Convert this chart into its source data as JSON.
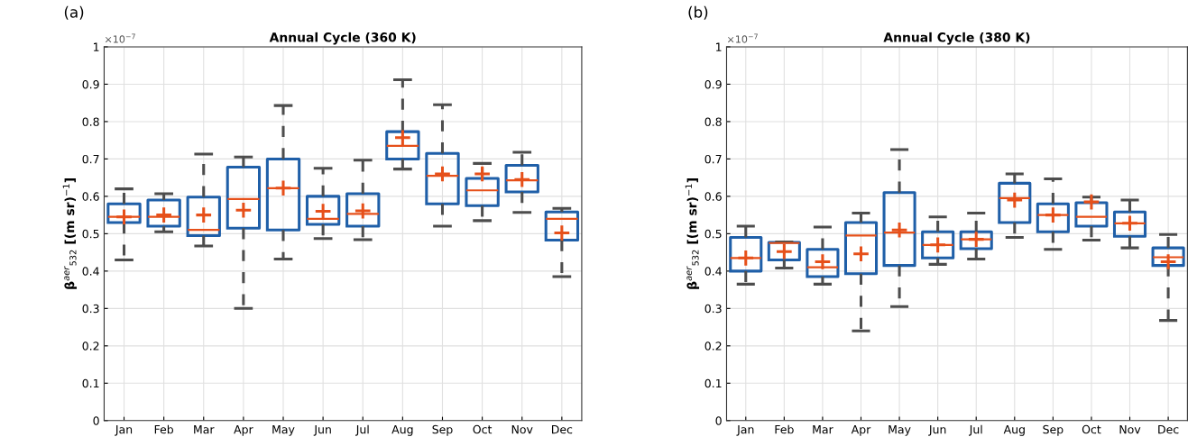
{
  "chart_data": [
    {
      "type": "box",
      "title": "Annual Cycle (360 K)",
      "ylabel": "β$^{aer}$$_{532}$ [(m sr)$^{−1}$]",
      "annotations": [
        "(a)",
        "×10$^{−7}$"
      ],
      "categories": [
        "Jan",
        "Feb",
        "Mar",
        "Apr",
        "May",
        "Jun",
        "Jul",
        "Aug",
        "Sep",
        "Oct",
        "Nov",
        "Dec"
      ],
      "ylim": [
        0,
        1
      ],
      "yticks": [
        0,
        0.1,
        0.2,
        0.3,
        0.4,
        0.5,
        0.6,
        0.7,
        0.8,
        0.9,
        1
      ],
      "grid": true,
      "marker": "cross",
      "line_style": "dashed",
      "series": [
        {
          "color": "#1f5fa8",
          "boxes": [
            {
              "low": 0.43,
              "q1": 0.53,
              "median": 0.545,
              "q3": 0.58,
              "high": 0.62,
              "mean": 0.545
            },
            {
              "low": 0.505,
              "q1": 0.52,
              "median": 0.545,
              "q3": 0.59,
              "high": 0.607,
              "mean": 0.55
            },
            {
              "low": 0.467,
              "q1": 0.495,
              "median": 0.51,
              "q3": 0.598,
              "high": 0.713,
              "mean": 0.55
            },
            {
              "low": 0.3,
              "q1": 0.515,
              "median": 0.593,
              "q3": 0.678,
              "high": 0.705,
              "mean": 0.563
            },
            {
              "low": 0.432,
              "q1": 0.51,
              "median": 0.622,
              "q3": 0.7,
              "high": 0.843,
              "mean": 0.622
            },
            {
              "low": 0.487,
              "q1": 0.525,
              "median": 0.54,
              "q3": 0.6,
              "high": 0.675,
              "mean": 0.56
            },
            {
              "low": 0.484,
              "q1": 0.52,
              "median": 0.553,
              "q3": 0.607,
              "high": 0.697,
              "mean": 0.561
            },
            {
              "low": 0.673,
              "q1": 0.7,
              "median": 0.735,
              "q3": 0.773,
              "high": 0.912,
              "mean": 0.757
            },
            {
              "low": 0.52,
              "q1": 0.58,
              "median": 0.655,
              "q3": 0.715,
              "high": 0.845,
              "mean": 0.66
            },
            {
              "low": 0.535,
              "q1": 0.575,
              "median": 0.616,
              "q3": 0.648,
              "high": 0.688,
              "mean": 0.66
            },
            {
              "low": 0.557,
              "q1": 0.612,
              "median": 0.643,
              "q3": 0.683,
              "high": 0.718,
              "mean": 0.645
            },
            {
              "low": 0.385,
              "q1": 0.483,
              "median": 0.54,
              "q3": 0.558,
              "high": 0.568,
              "mean": 0.502
            }
          ]
        }
      ]
    },
    {
      "type": "box",
      "title": "Annual Cycle (380 K)",
      "ylabel": "β$^{aer}$$_{532}$ [(m sr)$^{−1}$]",
      "annotations": [
        "(b)",
        "×10$^{−7}$"
      ],
      "categories": [
        "Jan",
        "Feb",
        "Mar",
        "Apr",
        "May",
        "Jun",
        "Jul",
        "Aug",
        "Sep",
        "Oct",
        "Nov",
        "Dec"
      ],
      "ylim": [
        0,
        1
      ],
      "yticks": [
        0,
        0.1,
        0.2,
        0.3,
        0.4,
        0.5,
        0.6,
        0.7,
        0.8,
        0.9,
        1
      ],
      "grid": true,
      "marker": "cross",
      "line_style": "dashed",
      "series": [
        {
          "color": "#1f5fa8",
          "boxes": [
            {
              "low": 0.365,
              "q1": 0.4,
              "median": 0.435,
              "q3": 0.49,
              "high": 0.52,
              "mean": 0.435
            },
            {
              "low": 0.408,
              "q1": 0.43,
              "median": 0.475,
              "q3": 0.477,
              "high": 0.478,
              "mean": 0.452
            },
            {
              "low": 0.365,
              "q1": 0.385,
              "median": 0.41,
              "q3": 0.458,
              "high": 0.518,
              "mean": 0.425
            },
            {
              "low": 0.24,
              "q1": 0.393,
              "median": 0.495,
              "q3": 0.53,
              "high": 0.555,
              "mean": 0.446
            },
            {
              "low": 0.305,
              "q1": 0.415,
              "median": 0.503,
              "q3": 0.61,
              "high": 0.725,
              "mean": 0.51
            },
            {
              "low": 0.418,
              "q1": 0.435,
              "median": 0.47,
              "q3": 0.505,
              "high": 0.545,
              "mean": 0.47
            },
            {
              "low": 0.432,
              "q1": 0.46,
              "median": 0.485,
              "q3": 0.505,
              "high": 0.555,
              "mean": 0.485
            },
            {
              "low": 0.49,
              "q1": 0.53,
              "median": 0.595,
              "q3": 0.635,
              "high": 0.66,
              "mean": 0.59
            },
            {
              "low": 0.458,
              "q1": 0.505,
              "median": 0.55,
              "q3": 0.58,
              "high": 0.647,
              "mean": 0.55
            },
            {
              "low": 0.483,
              "q1": 0.52,
              "median": 0.545,
              "q3": 0.583,
              "high": 0.598,
              "mean": 0.585
            },
            {
              "low": 0.462,
              "q1": 0.493,
              "median": 0.528,
              "q3": 0.558,
              "high": 0.59,
              "mean": 0.528
            },
            {
              "low": 0.268,
              "q1": 0.415,
              "median": 0.437,
              "q3": 0.462,
              "high": 0.498,
              "mean": 0.425
            }
          ]
        }
      ]
    }
  ]
}
